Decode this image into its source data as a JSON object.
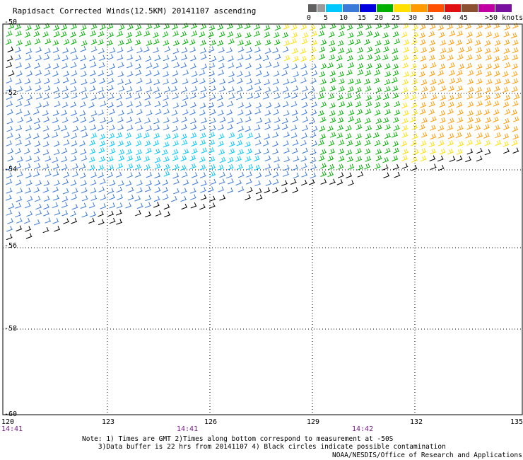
{
  "title": "Rapidsact Corrected Winds(12.5KM) 20141107 ascending",
  "legend": {
    "labels": [
      "0",
      "5",
      "10",
      "15",
      "20",
      "25",
      "30",
      "35",
      "40",
      "45",
      ">50 knots"
    ],
    "colors": [
      "#606060",
      "#9a9a9a",
      "#00c8ff",
      "#3a7ad8",
      "#0000e0",
      "#00b000",
      "#ffe000",
      "#ff9a00",
      "#ff5000",
      "#e01010",
      "#8a5030",
      "#c000a0",
      "#7a10a0"
    ]
  },
  "axes": {
    "lat_labels": [
      "-50",
      "-52",
      "-54",
      "-56",
      "-58",
      "-60"
    ],
    "lon_labels": [
      "120",
      "123",
      "126",
      "129",
      "132",
      "135"
    ],
    "time_labels": [
      "14:41",
      "14:41",
      "14:42"
    ]
  },
  "notes": [
    "Note: 1) Times are GMT 2)Times along bottom correspond to measurement at -50S",
    "3)Data buffer is 22 hrs from 20141107 4) Black circles indicate possible contamination"
  ],
  "credit": "NOAA/NESDIS/Office of Research and Applications"
}
